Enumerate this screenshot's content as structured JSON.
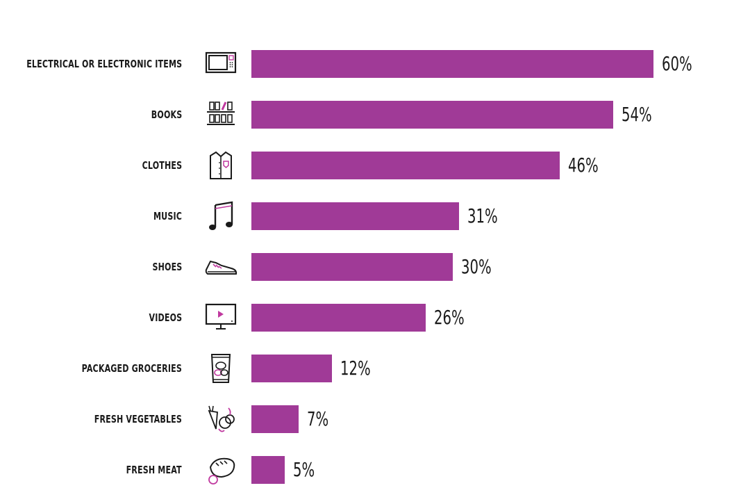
{
  "chart_data": {
    "type": "bar",
    "orientation": "horizontal",
    "categories": [
      "ELECTRICAL OR ELECTRONIC ITEMS",
      "BOOKS",
      "CLOTHES",
      "MUSIC",
      "SHOES",
      "VIDEOS",
      "PACKAGED GROCERIES",
      "FRESH VEGETABLES",
      "FRESH MEAT"
    ],
    "values": [
      60,
      54,
      46,
      31,
      30,
      26,
      12,
      7,
      5
    ],
    "value_labels": [
      "60%",
      "54%",
      "46%",
      "31%",
      "30%",
      "26%",
      "12%",
      "7%",
      "5%"
    ],
    "icons": [
      "microwave-icon",
      "bookshelf-icon",
      "shirt-icon",
      "music-note-icon",
      "sneaker-icon",
      "video-screen-icon",
      "grocery-bag-icon",
      "vegetables-icon",
      "meat-icon"
    ],
    "xlim": [
      0,
      60
    ],
    "grid": false,
    "legend": "none",
    "colors": {
      "bar": "#a03a97",
      "accent": "#c0399f",
      "text": "#1a1a1a"
    }
  }
}
